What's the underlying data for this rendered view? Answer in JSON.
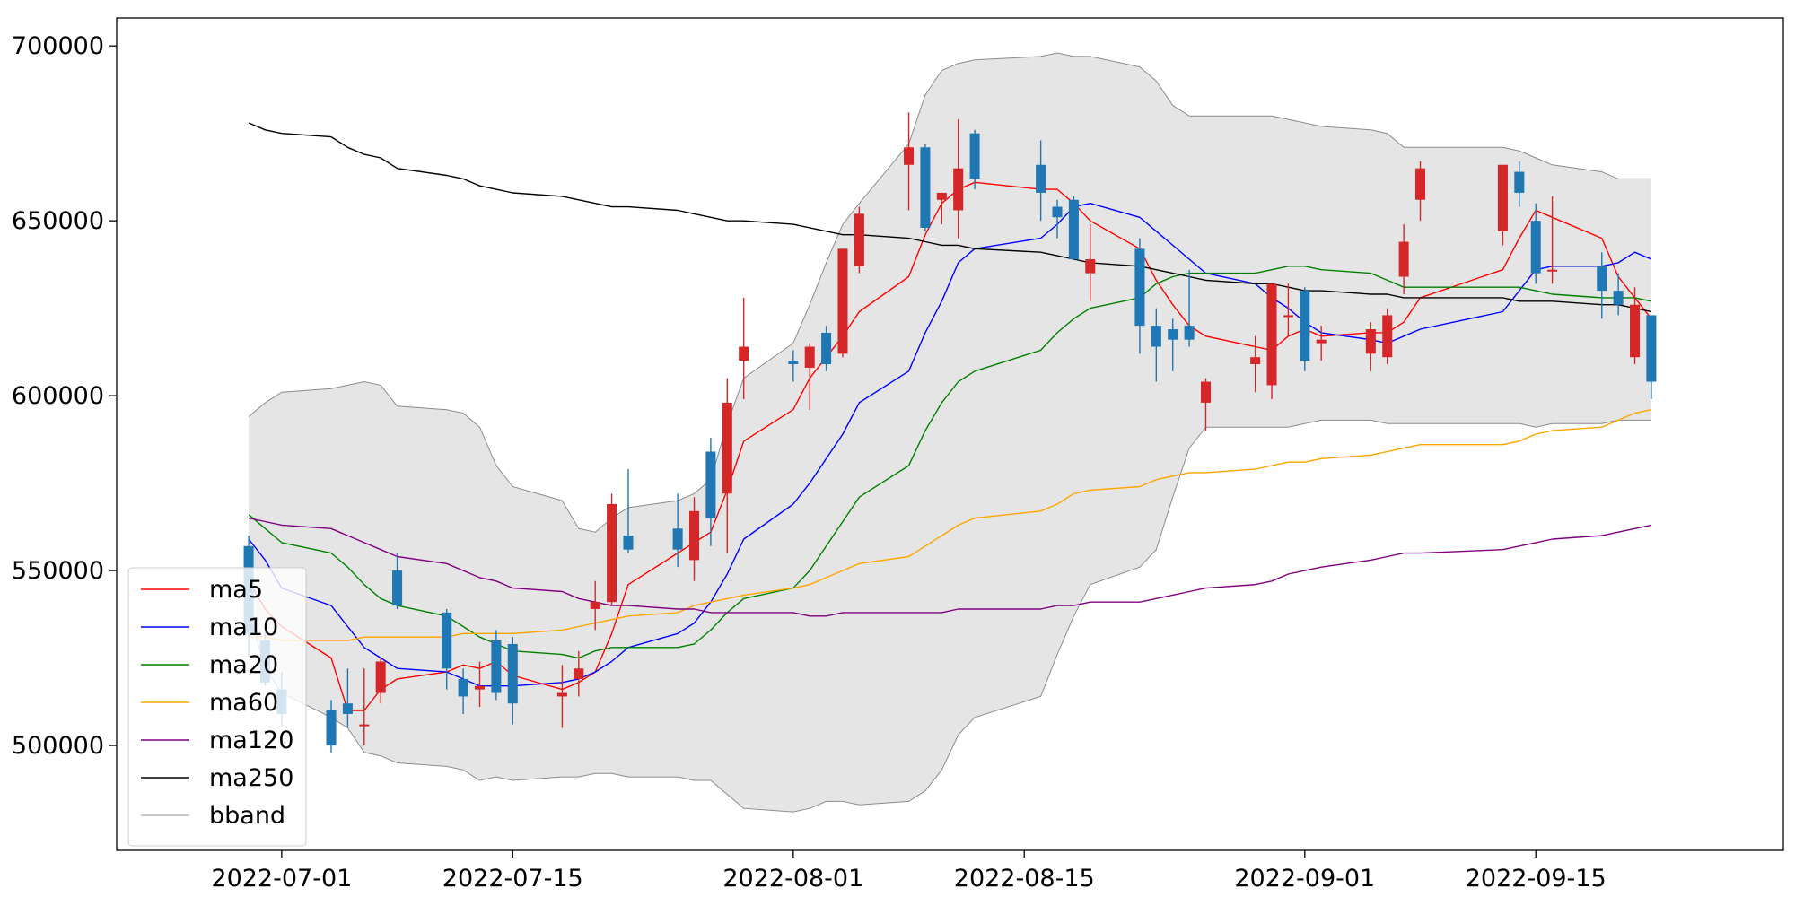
{
  "colors": {
    "up": "#d62728",
    "down": "#1f77b4",
    "band_fill": "#e5e5e5",
    "band_edge": "#8c8c8c",
    "ma5": "#ff0000",
    "ma10": "#0000ff",
    "ma20": "#008000",
    "ma60": "#ffa500",
    "ma120": "#800080",
    "ma250": "#000000"
  },
  "chart_data": {
    "type": "line",
    "title": "",
    "xlabel": "",
    "ylabel": "",
    "ylim": [
      470000,
      708000
    ],
    "grid": false,
    "legend_placement": "lower-left",
    "x_tick_labels": [
      "2022-07-01",
      "2022-07-15",
      "2022-08-01",
      "2022-08-15",
      "2022-09-01",
      "2022-09-15"
    ],
    "y_tick_labels": [
      "500000",
      "550000",
      "600000",
      "650000",
      "700000"
    ],
    "dates": [
      "2022-06-29",
      "2022-06-30",
      "2022-07-01",
      "2022-07-04",
      "2022-07-05",
      "2022-07-06",
      "2022-07-07",
      "2022-07-08",
      "2022-07-11",
      "2022-07-12",
      "2022-07-13",
      "2022-07-14",
      "2022-07-15",
      "2022-07-18",
      "2022-07-19",
      "2022-07-20",
      "2022-07-21",
      "2022-07-22",
      "2022-07-25",
      "2022-07-26",
      "2022-07-27",
      "2022-07-28",
      "2022-07-29",
      "2022-08-01",
      "2022-08-02",
      "2022-08-03",
      "2022-08-04",
      "2022-08-05",
      "2022-08-08",
      "2022-08-09",
      "2022-08-10",
      "2022-08-11",
      "2022-08-12",
      "2022-08-16",
      "2022-08-17",
      "2022-08-18",
      "2022-08-19",
      "2022-08-22",
      "2022-08-23",
      "2022-08-24",
      "2022-08-25",
      "2022-08-26",
      "2022-08-29",
      "2022-08-30",
      "2022-08-31",
      "2022-09-01",
      "2022-09-02",
      "2022-09-05",
      "2022-09-06",
      "2022-09-07",
      "2022-09-08",
      "2022-09-13",
      "2022-09-14",
      "2022-09-15",
      "2022-09-16",
      "2022-09-19",
      "2022-09-20",
      "2022-09-21",
      "2022-09-22"
    ],
    "candles": {
      "open": [
        557000,
        530000,
        516000,
        510000,
        512000,
        506000,
        515000,
        550000,
        538000,
        519000,
        516000,
        530000,
        529000,
        514000,
        519000,
        539000,
        541000,
        560000,
        562000,
        553000,
        584000,
        572000,
        610000,
        610000,
        608000,
        618000,
        612000,
        637000,
        666000,
        671000,
        656000,
        653000,
        675000,
        666000,
        654000,
        656000,
        635000,
        642000,
        620000,
        619000,
        620000,
        598000,
        609000,
        603000,
        623000,
        630000,
        615000,
        612000,
        611000,
        634000,
        656000,
        647000,
        664000,
        650000,
        636000,
        637000,
        630000,
        611000,
        623000
      ],
      "high": [
        560000,
        534000,
        521000,
        513000,
        522000,
        522000,
        525000,
        555000,
        539000,
        522000,
        524000,
        533000,
        531000,
        523000,
        527000,
        547000,
        572000,
        579000,
        572000,
        571000,
        588000,
        605000,
        628000,
        613000,
        615000,
        620000,
        619000,
        654000,
        681000,
        672000,
        658000,
        679000,
        676000,
        673000,
        656000,
        657000,
        649000,
        645000,
        625000,
        622000,
        636000,
        605000,
        617000,
        632000,
        632000,
        631000,
        620000,
        621000,
        625000,
        649000,
        667000,
        666000,
        667000,
        655000,
        657000,
        641000,
        635000,
        631000,
        623000
      ],
      "low": [
        525000,
        517000,
        505000,
        498000,
        505000,
        500000,
        512000,
        539000,
        516000,
        509000,
        511000,
        513000,
        506000,
        505000,
        514000,
        533000,
        540000,
        555000,
        551000,
        547000,
        557000,
        555000,
        599000,
        604000,
        596000,
        607000,
        611000,
        635000,
        653000,
        647000,
        649000,
        645000,
        659000,
        650000,
        645000,
        649000,
        627000,
        612000,
        604000,
        607000,
        614000,
        590000,
        601000,
        599000,
        617000,
        607000,
        610000,
        607000,
        609000,
        629000,
        650000,
        643000,
        654000,
        632000,
        632000,
        622000,
        623000,
        609000,
        599000
      ],
      "close": [
        532000,
        518000,
        509000,
        500000,
        509000,
        506000,
        524000,
        540000,
        522000,
        514000,
        517000,
        515000,
        512000,
        515000,
        522000,
        541000,
        569000,
        556000,
        556000,
        567000,
        565000,
        598000,
        614000,
        609000,
        614000,
        609000,
        642000,
        652000,
        671000,
        648000,
        658000,
        665000,
        662000,
        658000,
        651000,
        639000,
        639000,
        620000,
        614000,
        616000,
        616000,
        604000,
        611000,
        632000,
        623000,
        610000,
        616000,
        619000,
        623000,
        644000,
        665000,
        666000,
        658000,
        635000,
        636000,
        630000,
        626000,
        626000,
        604000
      ]
    },
    "series": [
      {
        "name": "ma5",
        "values": [
          547000,
          539000,
          534000,
          525000,
          510000,
          510000,
          516000,
          519000,
          521000,
          523000,
          522000,
          524000,
          520000,
          516000,
          518000,
          521000,
          532000,
          546000,
          555000,
          558000,
          561000,
          573000,
          587000,
          596000,
          605000,
          611000,
          617000,
          624000,
          634000,
          646000,
          655000,
          659000,
          661000,
          659000,
          659000,
          655000,
          650000,
          642000,
          633000,
          626000,
          620000,
          617000,
          614000,
          613000,
          617000,
          619000,
          617000,
          618000,
          618000,
          621000,
          628000,
          636000,
          645000,
          653000,
          651000,
          645000,
          634000,
          628000,
          622000
        ]
      },
      {
        "name": "ma10",
        "values": [
          559000,
          553000,
          545000,
          540000,
          534000,
          528000,
          525000,
          522000,
          521000,
          519000,
          517000,
          517000,
          517000,
          518000,
          519000,
          521000,
          524000,
          528000,
          532000,
          535000,
          541000,
          549000,
          559000,
          569000,
          575000,
          582000,
          589000,
          598000,
          607000,
          618000,
          627000,
          638000,
          642000,
          645000,
          649000,
          654000,
          655000,
          651000,
          647000,
          643000,
          639000,
          635000,
          632000,
          628000,
          625000,
          621000,
          618000,
          616000,
          615000,
          617000,
          619000,
          624000,
          630000,
          636000,
          637000,
          637000,
          638000,
          641000,
          639000
        ]
      },
      {
        "name": "ma20",
        "values": [
          566000,
          562000,
          558000,
          555000,
          551000,
          546000,
          542000,
          540000,
          537000,
          534000,
          531000,
          529000,
          527000,
          526000,
          525000,
          527000,
          528000,
          528000,
          528000,
          529000,
          533000,
          538000,
          542000,
          545000,
          550000,
          557000,
          564000,
          571000,
          580000,
          590000,
          598000,
          604000,
          607000,
          613000,
          618000,
          622000,
          625000,
          628000,
          632000,
          634000,
          635000,
          635000,
          635000,
          636000,
          637000,
          637000,
          636000,
          635000,
          633000,
          631000,
          631000,
          631000,
          631000,
          630000,
          629000,
          628000,
          628000,
          628000,
          627000
        ]
      },
      {
        "name": "ma60",
        "values": [
          531000,
          531000,
          530000,
          530000,
          530000,
          531000,
          531000,
          531000,
          531000,
          532000,
          532000,
          532000,
          532000,
          533000,
          534000,
          535000,
          536000,
          537000,
          538000,
          540000,
          541000,
          542000,
          543000,
          545000,
          546000,
          548000,
          550000,
          552000,
          554000,
          557000,
          560000,
          563000,
          565000,
          567000,
          569000,
          572000,
          573000,
          574000,
          576000,
          577000,
          578000,
          578000,
          579000,
          580000,
          581000,
          581000,
          582000,
          583000,
          584000,
          585000,
          586000,
          586000,
          587000,
          589000,
          590000,
          591000,
          593000,
          595000,
          596000
        ]
      },
      {
        "name": "ma120",
        "values": [
          565000,
          564000,
          563000,
          562000,
          560000,
          558000,
          556000,
          554000,
          552000,
          550000,
          548000,
          547000,
          545000,
          544000,
          542000,
          541000,
          540000,
          540000,
          539000,
          539000,
          538000,
          538000,
          538000,
          538000,
          537000,
          537000,
          538000,
          538000,
          538000,
          538000,
          538000,
          539000,
          539000,
          539000,
          540000,
          540000,
          541000,
          541000,
          542000,
          543000,
          544000,
          545000,
          546000,
          547000,
          549000,
          550000,
          551000,
          553000,
          554000,
          555000,
          555000,
          556000,
          557000,
          558000,
          559000,
          560000,
          561000,
          562000,
          563000
        ]
      },
      {
        "name": "ma250",
        "values": [
          678000,
          676000,
          675000,
          674000,
          671000,
          669000,
          668000,
          665000,
          663000,
          662000,
          660000,
          659000,
          658000,
          657000,
          656000,
          655000,
          654000,
          654000,
          653000,
          652000,
          651000,
          650000,
          650000,
          649000,
          648000,
          647000,
          646000,
          646000,
          645000,
          644000,
          643000,
          643000,
          642000,
          641000,
          640000,
          639000,
          638000,
          637000,
          636000,
          635000,
          634000,
          633000,
          632000,
          632000,
          631000,
          630000,
          630000,
          629000,
          629000,
          628000,
          628000,
          628000,
          627000,
          627000,
          627000,
          626000,
          626000,
          625000,
          624000
        ]
      }
    ],
    "bband": {
      "name": "bband",
      "upper": [
        594000,
        598000,
        601000,
        602000,
        603000,
        604000,
        603000,
        597000,
        596000,
        595000,
        591000,
        580000,
        574000,
        570000,
        562000,
        561000,
        565000,
        568000,
        570000,
        572000,
        576000,
        592000,
        605000,
        615000,
        626000,
        638000,
        649000,
        655000,
        672000,
        686000,
        693000,
        695000,
        696000,
        697000,
        698000,
        697000,
        697000,
        694000,
        690000,
        683000,
        680000,
        680000,
        680000,
        680000,
        679000,
        678000,
        677000,
        676000,
        675000,
        671000,
        671000,
        671000,
        670000,
        668000,
        666000,
        664000,
        662000,
        662000,
        662000
      ],
      "lower": [
        538000,
        522000,
        515000,
        508000,
        505000,
        498000,
        497000,
        495000,
        494000,
        493000,
        490000,
        491000,
        490000,
        491000,
        491000,
        492000,
        492000,
        491000,
        491000,
        490000,
        490000,
        486000,
        482000,
        481000,
        482000,
        484000,
        484000,
        483000,
        484000,
        487000,
        493000,
        503000,
        508000,
        514000,
        526000,
        537000,
        546000,
        551000,
        556000,
        571000,
        585000,
        591000,
        591000,
        591000,
        591000,
        592000,
        593000,
        593000,
        592000,
        592000,
        592000,
        592000,
        592000,
        591000,
        592000,
        592000,
        593000,
        593000,
        593000
      ]
    }
  },
  "legend": {
    "entries": [
      "ma5",
      "ma10",
      "ma20",
      "ma60",
      "ma120",
      "ma250",
      "bband"
    ]
  }
}
